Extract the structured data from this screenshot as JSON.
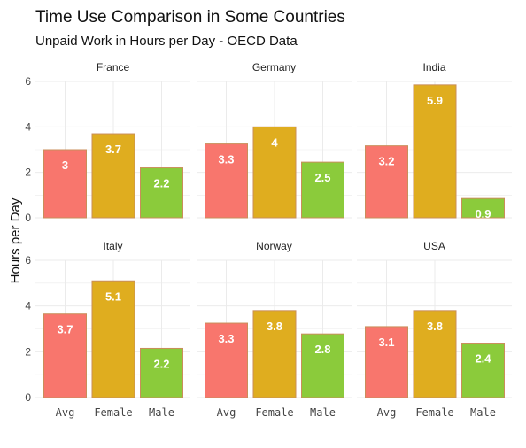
{
  "chart_data": {
    "type": "bar",
    "title": "Time Use Comparison in Some Countries",
    "subtitle": "Unpaid Work in Hours per Day - OECD Data",
    "ylabel": "Hours per Day",
    "xlabel": "",
    "categories": [
      "Avg",
      "Female",
      "Male"
    ],
    "ylim": [
      0,
      6
    ],
    "yticks": [
      0,
      2,
      4,
      6
    ],
    "grid": true,
    "colors": {
      "Avg": "#F8766D",
      "Female": "#DFAD1F",
      "Male": "#8BCB3B",
      "bar_outline": "#C98E5A",
      "grid": "#EBEBEB"
    },
    "panels": [
      {
        "facet": "France",
        "values": [
          3.0,
          3.7,
          2.2
        ],
        "labels": [
          "3",
          "3.7",
          "2.2"
        ]
      },
      {
        "facet": "Germany",
        "values": [
          3.25,
          4.0,
          2.45
        ],
        "labels": [
          "3.3",
          "4",
          "2.5"
        ]
      },
      {
        "facet": "India",
        "values": [
          3.17,
          5.85,
          0.85
        ],
        "labels": [
          "3.2",
          "5.9",
          "0.9"
        ]
      },
      {
        "facet": "Italy",
        "values": [
          3.65,
          5.1,
          2.15
        ],
        "labels": [
          "3.7",
          "5.1",
          "2.2"
        ]
      },
      {
        "facet": "Norway",
        "values": [
          3.25,
          3.8,
          2.78
        ],
        "labels": [
          "3.3",
          "3.8",
          "2.8"
        ]
      },
      {
        "facet": "USA",
        "values": [
          3.1,
          3.8,
          2.38
        ],
        "labels": [
          "3.1",
          "3.8",
          "2.4"
        ]
      }
    ]
  }
}
